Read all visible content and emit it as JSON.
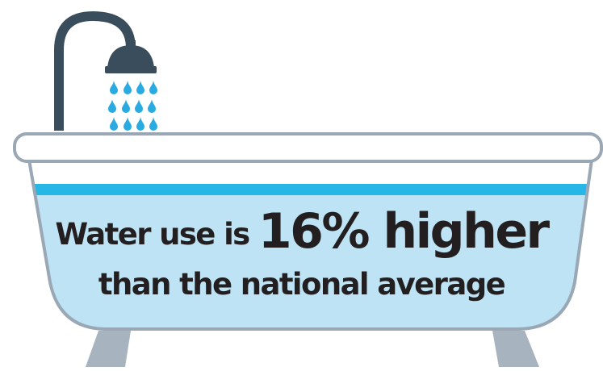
{
  "headline": {
    "prefix": "Water use is",
    "highlight": "16% higher",
    "line2": "than the national average"
  },
  "colors": {
    "water": "#bde3f4",
    "water_line": "#27b7e6",
    "drops": "#29aae1",
    "tub_outline": "#9aa7b4",
    "tub_body": "#ffffff",
    "fixture": "#3a4d5c",
    "feet": "#a7b3bf",
    "text": "#231f20"
  },
  "icons": [
    "shower-head-icon",
    "water-drop-icon",
    "bathtub-icon"
  ]
}
